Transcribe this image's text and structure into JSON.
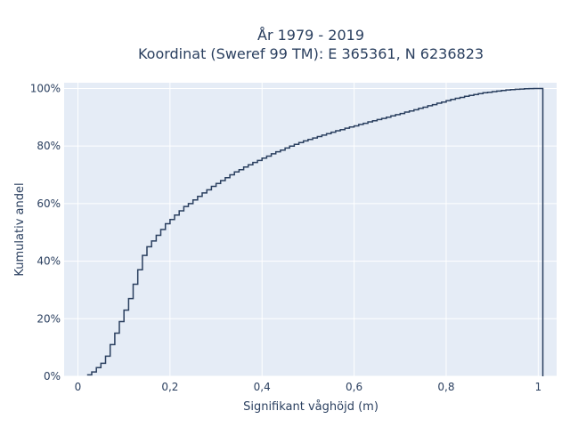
{
  "chart_data": {
    "type": "line",
    "line_shape": "step",
    "title": "År 1979 - 2019",
    "subtitle": "Koordinat (Sweref 99 TM): E 365361, N 6236823",
    "xlabel": "Signifikant våghöjd (m)",
    "ylabel": "Kumulativ andel",
    "xlim": [
      -0.03,
      1.04
    ],
    "ylim": [
      0,
      1.02
    ],
    "x_ticks": [
      {
        "value": 0,
        "label": "0"
      },
      {
        "value": 0.2,
        "label": "0,2"
      },
      {
        "value": 0.4,
        "label": "0,4"
      },
      {
        "value": 0.6,
        "label": "0,6"
      },
      {
        "value": 0.8,
        "label": "0,8"
      },
      {
        "value": 1.0,
        "label": "1"
      }
    ],
    "y_ticks": [
      {
        "value": 0,
        "label": "0%"
      },
      {
        "value": 0.2,
        "label": "20%"
      },
      {
        "value": 0.4,
        "label": "40%"
      },
      {
        "value": 0.6,
        "label": "60%"
      },
      {
        "value": 0.8,
        "label": "80%"
      },
      {
        "value": 1.0,
        "label": "100%"
      }
    ],
    "grid": true,
    "legend": false,
    "colors": {
      "plot_background": "#e5ecf6",
      "grid": "#ffffff",
      "line": "#2a3f5f",
      "text": "#2a3f5f"
    },
    "series": [
      {
        "x": [
          0.02,
          0.03,
          0.04,
          0.05,
          0.06,
          0.07,
          0.08,
          0.09,
          0.1,
          0.11,
          0.12,
          0.13,
          0.14,
          0.15,
          0.16,
          0.17,
          0.18,
          0.19,
          0.2,
          0.21,
          0.22,
          0.23,
          0.24,
          0.25,
          0.26,
          0.27,
          0.28,
          0.29,
          0.3,
          0.31,
          0.32,
          0.33,
          0.34,
          0.35,
          0.36,
          0.37,
          0.38,
          0.39,
          0.4,
          0.41,
          0.42,
          0.43,
          0.44,
          0.45,
          0.46,
          0.47,
          0.48,
          0.49,
          0.5,
          0.51,
          0.52,
          0.53,
          0.54,
          0.55,
          0.56,
          0.57,
          0.58,
          0.59,
          0.6,
          0.61,
          0.62,
          0.63,
          0.64,
          0.65,
          0.66,
          0.67,
          0.68,
          0.69,
          0.7,
          0.71,
          0.72,
          0.73,
          0.74,
          0.75,
          0.76,
          0.77,
          0.78,
          0.79,
          0.8,
          0.81,
          0.82,
          0.83,
          0.84,
          0.85,
          0.86,
          0.87,
          0.88,
          0.89,
          0.9,
          0.91,
          0.92,
          0.93,
          0.94,
          0.95,
          0.96,
          0.97,
          0.98,
          0.99,
          1.0,
          1.01
        ],
        "y": [
          0.005,
          0.015,
          0.03,
          0.045,
          0.07,
          0.11,
          0.15,
          0.19,
          0.23,
          0.27,
          0.32,
          0.37,
          0.42,
          0.45,
          0.47,
          0.49,
          0.51,
          0.53,
          0.545,
          0.56,
          0.575,
          0.59,
          0.6,
          0.613,
          0.625,
          0.637,
          0.648,
          0.66,
          0.67,
          0.68,
          0.69,
          0.7,
          0.71,
          0.718,
          0.727,
          0.735,
          0.743,
          0.75,
          0.758,
          0.765,
          0.773,
          0.78,
          0.786,
          0.793,
          0.8,
          0.806,
          0.812,
          0.818,
          0.823,
          0.828,
          0.833,
          0.838,
          0.843,
          0.848,
          0.853,
          0.857,
          0.862,
          0.866,
          0.87,
          0.875,
          0.879,
          0.884,
          0.888,
          0.892,
          0.896,
          0.9,
          0.905,
          0.909,
          0.913,
          0.918,
          0.922,
          0.926,
          0.931,
          0.935,
          0.94,
          0.944,
          0.949,
          0.953,
          0.958,
          0.962,
          0.966,
          0.969,
          0.973,
          0.976,
          0.979,
          0.982,
          0.985,
          0.987,
          0.989,
          0.991,
          0.993,
          0.995,
          0.996,
          0.997,
          0.998,
          0.999,
          0.9995,
          1.0,
          1.0,
          0.0
        ]
      }
    ]
  }
}
